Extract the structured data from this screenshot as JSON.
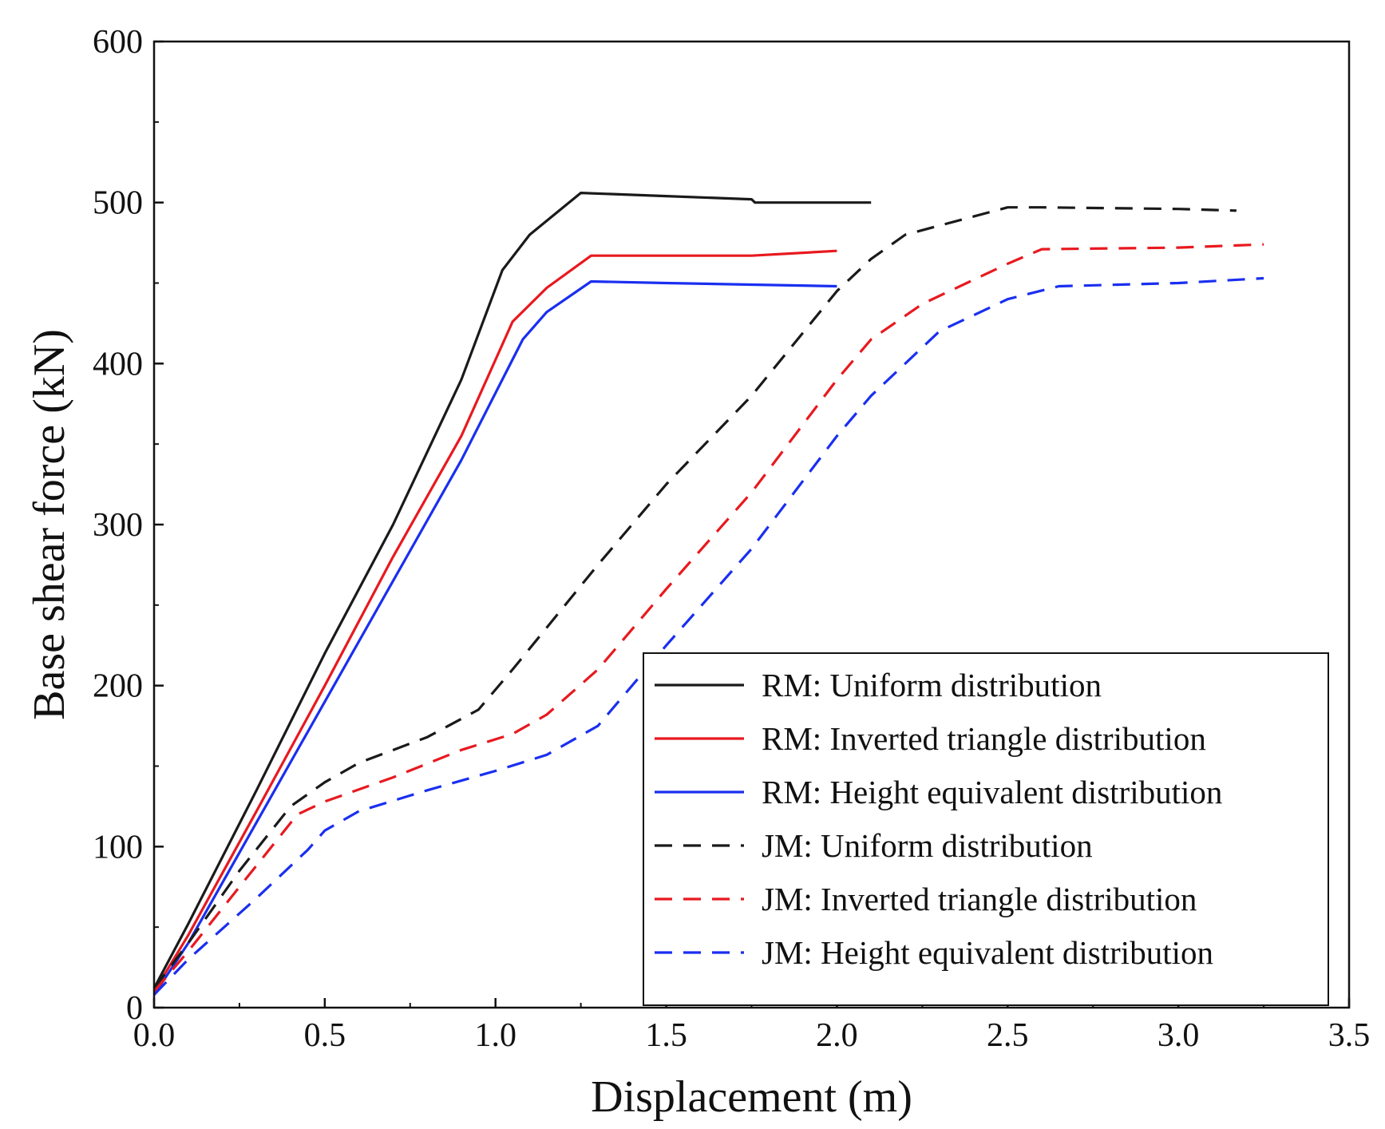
{
  "chart_data": {
    "type": "line",
    "title": "",
    "xlabel": "Displacement (m)",
    "ylabel": "Base shear force (kN)",
    "xlim": [
      0,
      3.5
    ],
    "ylim": [
      0,
      600
    ],
    "x_ticks": [
      0.0,
      0.5,
      1.0,
      1.5,
      2.0,
      2.5,
      3.0,
      3.5
    ],
    "x_tick_labels": [
      "0.0",
      "0.5",
      "1.0",
      "1.5",
      "2.0",
      "2.5",
      "3.0",
      "3.5"
    ],
    "y_ticks": [
      0,
      100,
      200,
      300,
      400,
      500,
      600
    ],
    "y_tick_labels": [
      "0",
      "100",
      "200",
      "300",
      "400",
      "500",
      "600"
    ],
    "grid": false,
    "legend_position": "bottom-right",
    "series": [
      {
        "name": "RM: Uniform distribution",
        "color": "#1a1a1a",
        "dash": "solid",
        "points": [
          [
            0.0,
            12
          ],
          [
            0.1,
            52
          ],
          [
            0.3,
            135
          ],
          [
            0.5,
            220
          ],
          [
            0.7,
            300
          ],
          [
            0.9,
            390
          ],
          [
            1.02,
            458
          ],
          [
            1.1,
            480
          ],
          [
            1.25,
            506
          ],
          [
            1.5,
            504
          ],
          [
            1.75,
            502
          ],
          [
            1.76,
            500
          ],
          [
            2.1,
            500
          ]
        ]
      },
      {
        "name": "RM: Inverted triangle distribution",
        "color": "#e8191f",
        "dash": "solid",
        "points": [
          [
            0.0,
            10
          ],
          [
            0.1,
            45
          ],
          [
            0.3,
            122
          ],
          [
            0.5,
            200
          ],
          [
            0.7,
            280
          ],
          [
            0.9,
            355
          ],
          [
            1.05,
            426
          ],
          [
            1.15,
            447
          ],
          [
            1.28,
            467
          ],
          [
            1.5,
            467
          ],
          [
            1.75,
            467
          ],
          [
            2.0,
            470
          ]
        ]
      },
      {
        "name": "RM: Height equivalent distribution",
        "color": "#1a2ff0",
        "dash": "solid",
        "points": [
          [
            0.0,
            8
          ],
          [
            0.1,
            40
          ],
          [
            0.3,
            115
          ],
          [
            0.5,
            190
          ],
          [
            0.7,
            265
          ],
          [
            0.9,
            340
          ],
          [
            1.08,
            415
          ],
          [
            1.15,
            432
          ],
          [
            1.28,
            451
          ],
          [
            1.5,
            450
          ],
          [
            1.75,
            449
          ],
          [
            2.0,
            448
          ]
        ]
      },
      {
        "name": "JM: Uniform distribution",
        "color": "#1a1a1a",
        "dash": "dashed",
        "points": [
          [
            0.0,
            12
          ],
          [
            0.1,
            40
          ],
          [
            0.25,
            85
          ],
          [
            0.4,
            125
          ],
          [
            0.5,
            140
          ],
          [
            0.6,
            152
          ],
          [
            0.8,
            168
          ],
          [
            0.95,
            185
          ],
          [
            1.05,
            210
          ],
          [
            1.3,
            275
          ],
          [
            1.5,
            325
          ],
          [
            1.75,
            380
          ],
          [
            2.0,
            445
          ],
          [
            2.1,
            465
          ],
          [
            2.2,
            480
          ],
          [
            2.5,
            497
          ],
          [
            2.6,
            497
          ],
          [
            3.0,
            496
          ],
          [
            3.17,
            495
          ]
        ]
      },
      {
        "name": "JM: Inverted triangle distribution",
        "color": "#e8191f",
        "dash": "dashed",
        "points": [
          [
            0.0,
            10
          ],
          [
            0.1,
            35
          ],
          [
            0.25,
            75
          ],
          [
            0.42,
            120
          ],
          [
            0.5,
            128
          ],
          [
            0.7,
            143
          ],
          [
            0.9,
            160
          ],
          [
            1.05,
            170
          ],
          [
            1.15,
            182
          ],
          [
            1.3,
            210
          ],
          [
            1.5,
            260
          ],
          [
            1.75,
            320
          ],
          [
            2.0,
            390
          ],
          [
            2.1,
            415
          ],
          [
            2.25,
            437
          ],
          [
            2.5,
            462
          ],
          [
            2.6,
            471
          ],
          [
            3.0,
            472
          ],
          [
            3.25,
            474
          ]
        ]
      },
      {
        "name": "JM: Height equivalent distribution",
        "color": "#1a2ff0",
        "dash": "dashed",
        "points": [
          [
            0.0,
            8
          ],
          [
            0.1,
            30
          ],
          [
            0.3,
            68
          ],
          [
            0.45,
            98
          ],
          [
            0.5,
            110
          ],
          [
            0.6,
            122
          ],
          [
            0.8,
            135
          ],
          [
            1.0,
            147
          ],
          [
            1.15,
            157
          ],
          [
            1.3,
            175
          ],
          [
            1.5,
            225
          ],
          [
            1.75,
            285
          ],
          [
            2.0,
            355
          ],
          [
            2.1,
            380
          ],
          [
            2.3,
            420
          ],
          [
            2.5,
            440
          ],
          [
            2.65,
            448
          ],
          [
            3.0,
            450
          ],
          [
            3.25,
            453
          ]
        ]
      }
    ]
  }
}
